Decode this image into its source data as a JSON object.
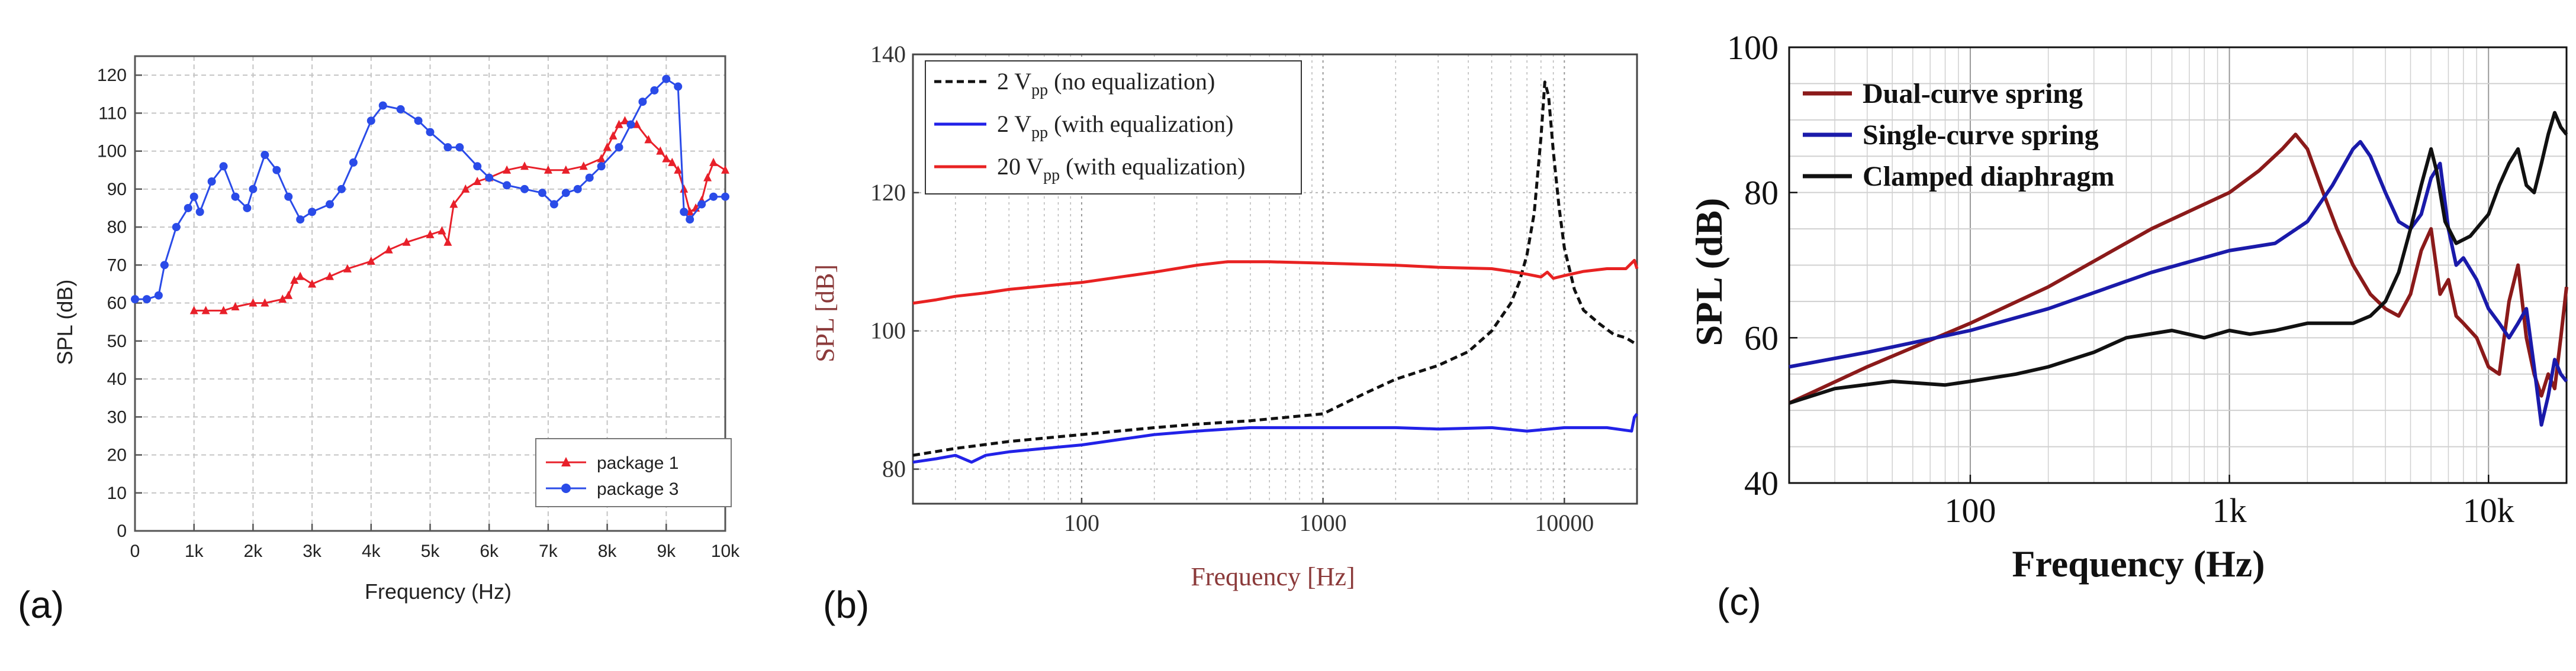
{
  "panels": {
    "a": "(a)",
    "b": "(b)",
    "c": "(c)"
  },
  "chart_data": [
    {
      "id": "a",
      "type": "line",
      "xscale": "linear",
      "xlabel": "Frequency (Hz)",
      "ylabel": "SPL (dB)",
      "xlim": [
        0,
        10000
      ],
      "ylim": [
        0,
        125
      ],
      "xticks": [
        0,
        1000,
        2000,
        3000,
        4000,
        5000,
        6000,
        7000,
        8000,
        9000,
        10000
      ],
      "xtick_labels": [
        "0",
        "1k",
        "2k",
        "3k",
        "4k",
        "5k",
        "6k",
        "7k",
        "8k",
        "9k",
        "10k"
      ],
      "yticks": [
        0,
        10,
        20,
        30,
        40,
        50,
        60,
        70,
        80,
        90,
        100,
        110,
        120
      ],
      "ytick_labels": [
        "0",
        "10",
        "20",
        "30",
        "40",
        "50",
        "60",
        "70",
        "80",
        "90",
        "100",
        "110",
        "120"
      ],
      "grid": true,
      "legend_position": "bottom-right",
      "series": [
        {
          "name": "package 1",
          "color": "#e8202a",
          "marker": "triangle",
          "x": [
            1000,
            1200,
            1500,
            1700,
            2000,
            2200,
            2500,
            2600,
            2700,
            2800,
            3000,
            3300,
            3600,
            4000,
            4300,
            4600,
            5000,
            5200,
            5300,
            5400,
            5600,
            5800,
            6000,
            6300,
            6600,
            7000,
            7300,
            7600,
            7900,
            8000,
            8100,
            8200,
            8300,
            8500,
            8700,
            8900,
            9000,
            9100,
            9200,
            9300,
            9400,
            9500,
            9600,
            9700,
            9800,
            10000
          ],
          "y": [
            58,
            58,
            58,
            59,
            60,
            60,
            61,
            62,
            66,
            67,
            65,
            67,
            69,
            71,
            74,
            76,
            78,
            79,
            76,
            86,
            90,
            92,
            93,
            95,
            96,
            95,
            95,
            96,
            98,
            101,
            104,
            107,
            108,
            107,
            103,
            100,
            98,
            97,
            95,
            90,
            84,
            85,
            87,
            93,
            97,
            95
          ]
        },
        {
          "name": "package 3",
          "color": "#2a4be8",
          "marker": "circle",
          "x": [
            0,
            200,
            400,
            500,
            700,
            900,
            1000,
            1100,
            1300,
            1500,
            1700,
            1900,
            2000,
            2200,
            2400,
            2600,
            2800,
            3000,
            3300,
            3500,
            3700,
            4000,
            4200,
            4500,
            4800,
            5000,
            5300,
            5500,
            5800,
            6000,
            6300,
            6600,
            6900,
            7100,
            7300,
            7500,
            7700,
            7900,
            8200,
            8400,
            8600,
            8800,
            9000,
            9200,
            9300,
            9400,
            9600,
            9800,
            10000
          ],
          "y": [
            61,
            61,
            62,
            70,
            80,
            85,
            88,
            84,
            92,
            96,
            88,
            85,
            90,
            99,
            95,
            88,
            82,
            84,
            86,
            90,
            97,
            108,
            112,
            111,
            108,
            105,
            101,
            101,
            96,
            93,
            91,
            90,
            89,
            86,
            89,
            90,
            93,
            96,
            101,
            107,
            113,
            116,
            119,
            117,
            84,
            82,
            86,
            88,
            88
          ]
        }
      ]
    },
    {
      "id": "b",
      "type": "line",
      "xscale": "log",
      "xlabel": "Frequency [Hz]",
      "ylabel": "SPL [dB]",
      "xlim": [
        20,
        20000
      ],
      "ylim": [
        75,
        140
      ],
      "xticks": [
        100,
        1000,
        10000
      ],
      "xtick_labels": [
        "100",
        "1000",
        "10000"
      ],
      "yticks": [
        80,
        100,
        120,
        140
      ],
      "ytick_labels": [
        "80",
        "100",
        "120",
        "140"
      ],
      "grid": true,
      "legend_position": "top-left",
      "series": [
        {
          "name": "2 V",
          "name_sub": "pp",
          "name_suffix": " (no equalization)",
          "color": "#111111",
          "style": "dashed",
          "x": [
            20,
            30,
            50,
            100,
            200,
            300,
            500,
            1000,
            1500,
            2000,
            3000,
            4000,
            5000,
            6000,
            6500,
            7000,
            7500,
            8000,
            8300,
            8600,
            9000,
            9500,
            10000,
            11000,
            12000,
            14000,
            16000,
            18000,
            20000
          ],
          "y": [
            82,
            83,
            84,
            85,
            86,
            86.5,
            87,
            88,
            91,
            93,
            95,
            97,
            100,
            104,
            107,
            111,
            117,
            128,
            136,
            134,
            126,
            118,
            112,
            106,
            103,
            101,
            99.5,
            99,
            98
          ]
        },
        {
          "name": "2 V",
          "name_sub": "pp",
          "name_suffix": " (with equalization)",
          "color": "#2222e8",
          "style": "solid",
          "x": [
            20,
            25,
            30,
            35,
            40,
            50,
            70,
            100,
            200,
            300,
            500,
            1000,
            2000,
            3000,
            5000,
            7000,
            10000,
            15000,
            19000,
            19500,
            20000
          ],
          "y": [
            81,
            81.5,
            82,
            81,
            82,
            82.5,
            83,
            83.5,
            85,
            85.5,
            86,
            86,
            86,
            85.8,
            86,
            85.5,
            86,
            86,
            85.5,
            87.5,
            88
          ]
        },
        {
          "name": "20 V",
          "name_sub": "pp",
          "name_suffix": " (with equalization)",
          "color": "#e82222",
          "style": "solid",
          "x": [
            20,
            25,
            30,
            40,
            50,
            70,
            100,
            200,
            300,
            400,
            600,
            1000,
            2000,
            3000,
            5000,
            6000,
            7000,
            8000,
            8500,
            9000,
            10000,
            12000,
            15000,
            18000,
            19500,
            20000
          ],
          "y": [
            104,
            104.5,
            105,
            105.5,
            106,
            106.5,
            107,
            108.5,
            109.5,
            110,
            110,
            109.8,
            109.5,
            109.2,
            109,
            108.6,
            108.2,
            107.8,
            108.5,
            107.6,
            108,
            108.6,
            109,
            109,
            110.2,
            109
          ]
        }
      ]
    },
    {
      "id": "c",
      "type": "line",
      "xscale": "log",
      "xlabel": "Frequency (Hz)",
      "ylabel": "SPL (dB)",
      "xlim": [
        20,
        20000
      ],
      "ylim": [
        40,
        100
      ],
      "xticks": [
        100,
        1000,
        10000
      ],
      "xtick_labels": [
        "100",
        "1k",
        "10k"
      ],
      "yticks": [
        40,
        60,
        80,
        100
      ],
      "ytick_labels": [
        "40",
        "60",
        "80",
        "100"
      ],
      "grid": true,
      "legend_position": "top-left",
      "series": [
        {
          "name": "Dual-curve spring",
          "color": "#8b1a1a",
          "x": [
            20,
            40,
            100,
            200,
            500,
            1000,
            1300,
            1600,
            1800,
            2000,
            2300,
            2600,
            3000,
            3500,
            4000,
            4500,
            5000,
            5500,
            6000,
            6500,
            7000,
            7500,
            8000,
            9000,
            10000,
            11000,
            12000,
            13000,
            14000,
            15000,
            16000,
            17000,
            18000,
            19000,
            20000
          ],
          "y": [
            51,
            56,
            62,
            67,
            75,
            80,
            83,
            86,
            88,
            86,
            80,
            75,
            70,
            66,
            64,
            63,
            66,
            72,
            75,
            66,
            68,
            63,
            62,
            60,
            56,
            55,
            65,
            70,
            60,
            55,
            52,
            55,
            53,
            60,
            67
          ]
        },
        {
          "name": "Single-curve spring",
          "color": "#1a1aaa",
          "x": [
            20,
            40,
            100,
            200,
            500,
            1000,
            1500,
            2000,
            2500,
            3000,
            3200,
            3500,
            4000,
            4500,
            5000,
            5500,
            6000,
            6500,
            7000,
            7500,
            8000,
            9000,
            10000,
            11000,
            12000,
            13000,
            14000,
            15000,
            16000,
            17000,
            18000,
            19000,
            20000
          ],
          "y": [
            56,
            58,
            61,
            64,
            69,
            72,
            73,
            76,
            81,
            86,
            87,
            85,
            80,
            76,
            75,
            77,
            82,
            84,
            75,
            70,
            71,
            68,
            64,
            62,
            60,
            62,
            64,
            56,
            48,
            52,
            57,
            55,
            54
          ]
        },
        {
          "name": "Clamped diaphragm",
          "color": "#111111",
          "x": [
            20,
            30,
            50,
            80,
            100,
            150,
            200,
            300,
            400,
            600,
            800,
            1000,
            1200,
            1500,
            2000,
            2500,
            3000,
            3500,
            4000,
            4500,
            5000,
            5500,
            6000,
            6300,
            6800,
            7500,
            8500,
            10000,
            11000,
            12000,
            13000,
            14000,
            15000,
            16000,
            17000,
            18000,
            19000,
            20000
          ],
          "y": [
            51,
            53,
            54,
            53.5,
            54,
            55,
            56,
            58,
            60,
            61,
            60,
            61,
            60.5,
            61,
            62,
            62,
            62,
            63,
            65,
            69,
            75,
            81,
            86,
            83,
            76,
            73,
            74,
            77,
            81,
            84,
            86,
            81,
            80,
            84,
            88,
            91,
            89,
            88
          ]
        }
      ]
    }
  ]
}
